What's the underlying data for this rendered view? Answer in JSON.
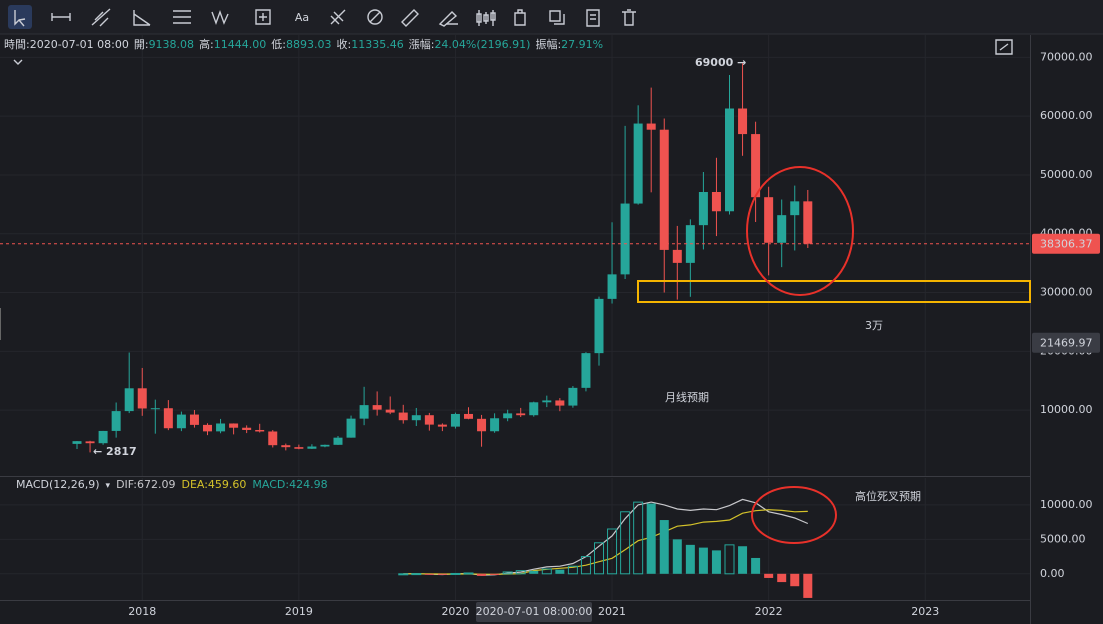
{
  "toolbar": [
    "Aa"
  ],
  "header": [
    {
      "label": "時間:",
      "value": "2020-07-01 08:00"
    },
    {
      "label": "開:",
      "value": "9138.08"
    },
    {
      "label": "高:",
      "value": "11444.00"
    },
    {
      "label": "低:",
      "value": "8893.03"
    },
    {
      "label": "收:",
      "value": "11335.46"
    },
    {
      "label": "漲幅:",
      "value": "24.04%(2196.91)"
    },
    {
      "label": "振幅:",
      "value": "27.91%"
    }
  ],
  "chart_data": [
    {
      "type": "candlestick",
      "categories": [
        "2017-08",
        "2017-09",
        "2017-10",
        "2017-11",
        "2017-12",
        "2018-01",
        "2018-02",
        "2018-03",
        "2018-04",
        "2018-05",
        "2018-06",
        "2018-07",
        "2018-08",
        "2018-09",
        "2018-10",
        "2018-11",
        "2018-12",
        "2019-01",
        "2019-02",
        "2019-03",
        "2019-04",
        "2019-05",
        "2019-06",
        "2019-07",
        "2019-08",
        "2019-09",
        "2019-10",
        "2019-11",
        "2019-12",
        "2020-01",
        "2020-02",
        "2020-03",
        "2020-04",
        "2020-05",
        "2020-06",
        "2020-07",
        "2020-08",
        "2020-09",
        "2020-10",
        "2020-11",
        "2020-12",
        "2021-01",
        "2021-02",
        "2021-03",
        "2021-04",
        "2021-05",
        "2021-06",
        "2021-07",
        "2021-08",
        "2021-09",
        "2021-10",
        "2021-11",
        "2021-12",
        "2022-01",
        "2022-02",
        "2022-03",
        "2022-04"
      ],
      "open": [
        4261,
        4689,
        4378,
        6463,
        9838,
        13716,
        10285,
        10326,
        6923,
        9247,
        7494,
        6391,
        7730,
        7011,
        6626,
        6371,
        4041,
        3702,
        3434,
        3814,
        4103,
        5320,
        8555,
        10855,
        10085,
        9588,
        8289,
        9140,
        7540,
        7196,
        9352,
        8523,
        6410,
        8620,
        9448,
        9138.08,
        11335,
        11650,
        10776,
        13791,
        19695,
        28923,
        33092,
        45135,
        58740,
        57694,
        37253,
        35045,
        41461,
        47100,
        43824,
        61299,
        56950,
        46216,
        38466,
        43160,
        45510
      ],
      "high": [
        4745,
        4789,
        6470,
        11300,
        19798,
        17176,
        11786,
        11710,
        9759,
        10020,
        7764,
        8507,
        7750,
        7410,
        7680,
        6615,
        4312,
        4140,
        4198,
        4140,
        5600,
        9074,
        13970,
        13183,
        12325,
        10905,
        10370,
        9530,
        7750,
        9578,
        10500,
        9188,
        9460,
        10067,
        10380,
        11444,
        12468,
        12050,
        14100,
        19863,
        29300,
        41950,
        58352,
        61844,
        64854,
        59592,
        41330,
        42448,
        50500,
        52920,
        67000,
        69000,
        59053,
        47990,
        45821,
        48189,
        47444
      ],
      "low": [
        3400,
        2817,
        4110,
        5325,
        9500,
        9035,
        6000,
        6600,
        6430,
        7032,
        5750,
        6070,
        5880,
        6100,
        6200,
        3652,
        3156,
        3349,
        3400,
        3690,
        4067,
        5320,
        7444,
        9071,
        9320,
        7710,
        7300,
        6515,
        6435,
        6871,
        8445,
        3782,
        6150,
        8117,
        8833,
        8893.03,
        10518,
        9825,
        10416,
        13195,
        17572,
        28130,
        32296,
        44950,
        47044,
        30000,
        28805,
        29278,
        37332,
        39600,
        43283,
        53256,
        42000,
        32917,
        34322,
        37155,
        37578
      ],
      "close": [
        4724,
        4378,
        6463,
        9838,
        13716,
        10285,
        10326,
        6923,
        9247,
        7494,
        6391,
        7730,
        7011,
        6626,
        6371,
        4041,
        3702,
        3434,
        3814,
        4103,
        5320,
        8555,
        10855,
        10085,
        9588,
        8289,
        9140,
        7540,
        7196,
        9352,
        8523,
        6410,
        8620,
        9448,
        9138,
        11335.46,
        11650,
        10776,
        13791,
        19695,
        28923,
        33092,
        45135,
        58740,
        57694,
        37253,
        35045,
        41461,
        47100,
        43824,
        61299,
        56950,
        46216,
        38466,
        43160,
        45510,
        38306.37
      ],
      "up_color": "#26a69a",
      "down_color": "#ef5350",
      "ylim": [
        -1200,
        73800
      ],
      "yticks": [
        {
          "value": 10000,
          "label": "10000.00"
        },
        {
          "value": 20000,
          "label": "20000.00"
        },
        {
          "value": 30000,
          "label": "30000.00"
        },
        {
          "value": 40000,
          "label": "40000.00"
        },
        {
          "value": 50000,
          "label": "50000.00"
        },
        {
          "value": 60000,
          "label": "60000.00"
        },
        {
          "value": 70000,
          "label": "70000.00"
        }
      ],
      "xticks": [
        {
          "value": "2018-01",
          "label": "2018"
        },
        {
          "value": "2019-01",
          "label": "2019"
        },
        {
          "value": "2020-01",
          "label": "2020"
        },
        {
          "value": "2021-01",
          "label": "2021"
        },
        {
          "value": "2022-01",
          "label": "2022"
        },
        {
          "value": "2023-01",
          "label": "2023"
        }
      ],
      "grid": true,
      "last_price": 38306.37,
      "cursor_price": 21469.97,
      "cursor_x": "2020-07-01 08:00:00",
      "annotations": [
        "69000 →",
        "← 2817",
        "3万",
        "月线预期",
        "高位死叉预期"
      ]
    },
    {
      "type": "macd",
      "title": "MACD(12,26,9)",
      "readout": [
        "DIF:672.09",
        "DEA:459.60",
        "MACD:424.98"
      ],
      "series": [
        {
          "name": "DIF",
          "color": "#c8c8cc",
          "values": [
            null,
            null,
            null,
            null,
            null,
            null,
            null,
            null,
            null,
            null,
            null,
            null,
            null,
            null,
            null,
            null,
            null,
            null,
            null,
            null,
            null,
            null,
            null,
            null,
            null,
            0,
            20,
            -50,
            -100,
            0,
            50,
            -200,
            -150,
            100,
            250,
            672.09,
            1000,
            1100,
            1500,
            2500,
            4000,
            5500,
            8000,
            10000,
            10400,
            10000,
            9400,
            9200,
            9400,
            9300,
            9900,
            10800,
            10300,
            9000,
            8600,
            8100,
            7300
          ]
        },
        {
          "name": "DEA",
          "color": "#d4c22a",
          "values": [
            null,
            null,
            null,
            null,
            null,
            null,
            null,
            null,
            null,
            null,
            null,
            null,
            null,
            null,
            null,
            null,
            null,
            null,
            null,
            null,
            null,
            null,
            null,
            null,
            null,
            0,
            5,
            -10,
            -30,
            -25,
            -10,
            -50,
            -70,
            -35,
            20,
            459.6,
            650,
            800,
            950,
            1250,
            1750,
            2250,
            3500,
            4800,
            5300,
            6100,
            6900,
            7100,
            7500,
            7600,
            7800,
            8800,
            9150,
            9300,
            9200,
            9000,
            9050
          ]
        },
        {
          "name": "MACD",
          "color": "#26a69a",
          "down_color": "#ef5350",
          "values": [
            null,
            null,
            null,
            null,
            null,
            null,
            null,
            null,
            null,
            null,
            null,
            null,
            null,
            null,
            null,
            null,
            null,
            null,
            null,
            null,
            null,
            null,
            null,
            null,
            null,
            0,
            30,
            -80,
            -140,
            50,
            120,
            -300,
            -160,
            270,
            460,
            424.98,
            700,
            600,
            1100,
            2500,
            4500,
            6500,
            9000,
            10400,
            10200,
            7800,
            5000,
            4200,
            3800,
            3400,
            4200,
            4000,
            2300,
            -600,
            -1200,
            -1800,
            -3500
          ]
        }
      ],
      "ylim": [
        -3800,
        13900
      ],
      "yticks": [
        {
          "value": 0,
          "label": "0.00"
        },
        {
          "value": 5000,
          "label": "5000.00"
        },
        {
          "value": 10000,
          "label": "10000.00"
        }
      ],
      "grid": true
    }
  ]
}
